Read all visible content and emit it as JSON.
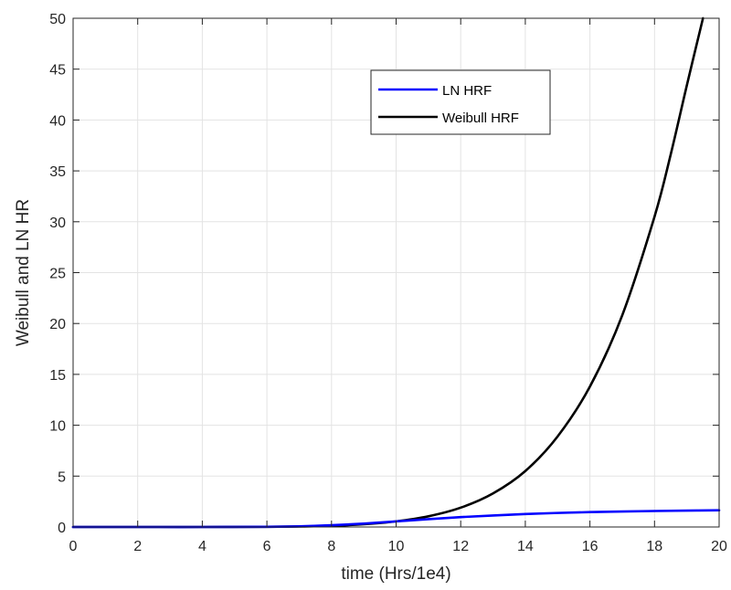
{
  "chart_data": {
    "type": "line",
    "xlabel": "time (Hrs/1e4)",
    "ylabel": "Weibull and LN HR",
    "xlim": [
      0,
      20
    ],
    "ylim": [
      0,
      50
    ],
    "xticks": [
      0,
      2,
      4,
      6,
      8,
      10,
      12,
      14,
      16,
      18,
      20
    ],
    "yticks": [
      0,
      5,
      10,
      15,
      20,
      25,
      30,
      35,
      40,
      45,
      50
    ],
    "grid": true,
    "legend_position": "top-center",
    "series": [
      {
        "name": "LN HRF",
        "color": "#0000ff",
        "x": [
          0,
          2,
          4,
          6,
          7,
          8,
          9,
          10,
          11,
          12,
          13,
          14,
          15,
          16,
          17,
          18,
          19,
          20
        ],
        "y": [
          0,
          0,
          0,
          0.02,
          0.06,
          0.17,
          0.33,
          0.55,
          0.77,
          0.97,
          1.13,
          1.27,
          1.38,
          1.46,
          1.52,
          1.57,
          1.61,
          1.64
        ]
      },
      {
        "name": "Weibull HRF",
        "color": "#000000",
        "x": [
          0,
          2,
          4,
          6,
          7,
          8,
          9,
          10,
          11,
          12,
          13,
          14,
          15,
          16,
          17,
          18,
          18.5,
          19,
          19.5
        ],
        "y": [
          0,
          0,
          0,
          0.02,
          0.05,
          0.12,
          0.27,
          0.55,
          1.05,
          1.9,
          3.3,
          5.5,
          8.9,
          13.8,
          20.8,
          30.5,
          36.6,
          43.4,
          50
        ]
      }
    ]
  }
}
